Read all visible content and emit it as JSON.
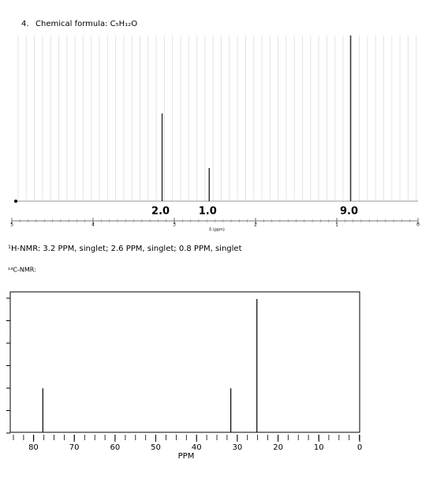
{
  "heading": {
    "number": "4.",
    "text": "Chemical formula: C₅H₁₂O"
  },
  "h_nmr": {
    "type": "stem",
    "x": [
      3.15,
      2.57,
      0.83
    ],
    "values": [
      53,
      20,
      100
    ],
    "integrations": [
      "2.0",
      "1.0",
      "9.0"
    ],
    "xlim": [
      5,
      0
    ],
    "xticks": [
      5,
      4,
      3,
      2,
      1,
      0
    ],
    "ylim": [
      0,
      100
    ],
    "xlabel": "δ (ppm)"
  },
  "h_nmr_text": "¹H-NMR: 3.2 PPM, singlet; 2.6 PPM, singlet; 0.8 PPM, singlet",
  "c_nmr_label": "¹³C-NMR:",
  "c_nmr": {
    "type": "stem",
    "x": [
      77.7,
      31.6,
      25.2
    ],
    "values": [
      33,
      33,
      100
    ],
    "xlim": [
      85.5,
      0
    ],
    "xticks": [
      80,
      70,
      60,
      50,
      40,
      30,
      20,
      10,
      0
    ],
    "ylim": [
      0,
      100
    ],
    "xlabel": "PPM"
  }
}
